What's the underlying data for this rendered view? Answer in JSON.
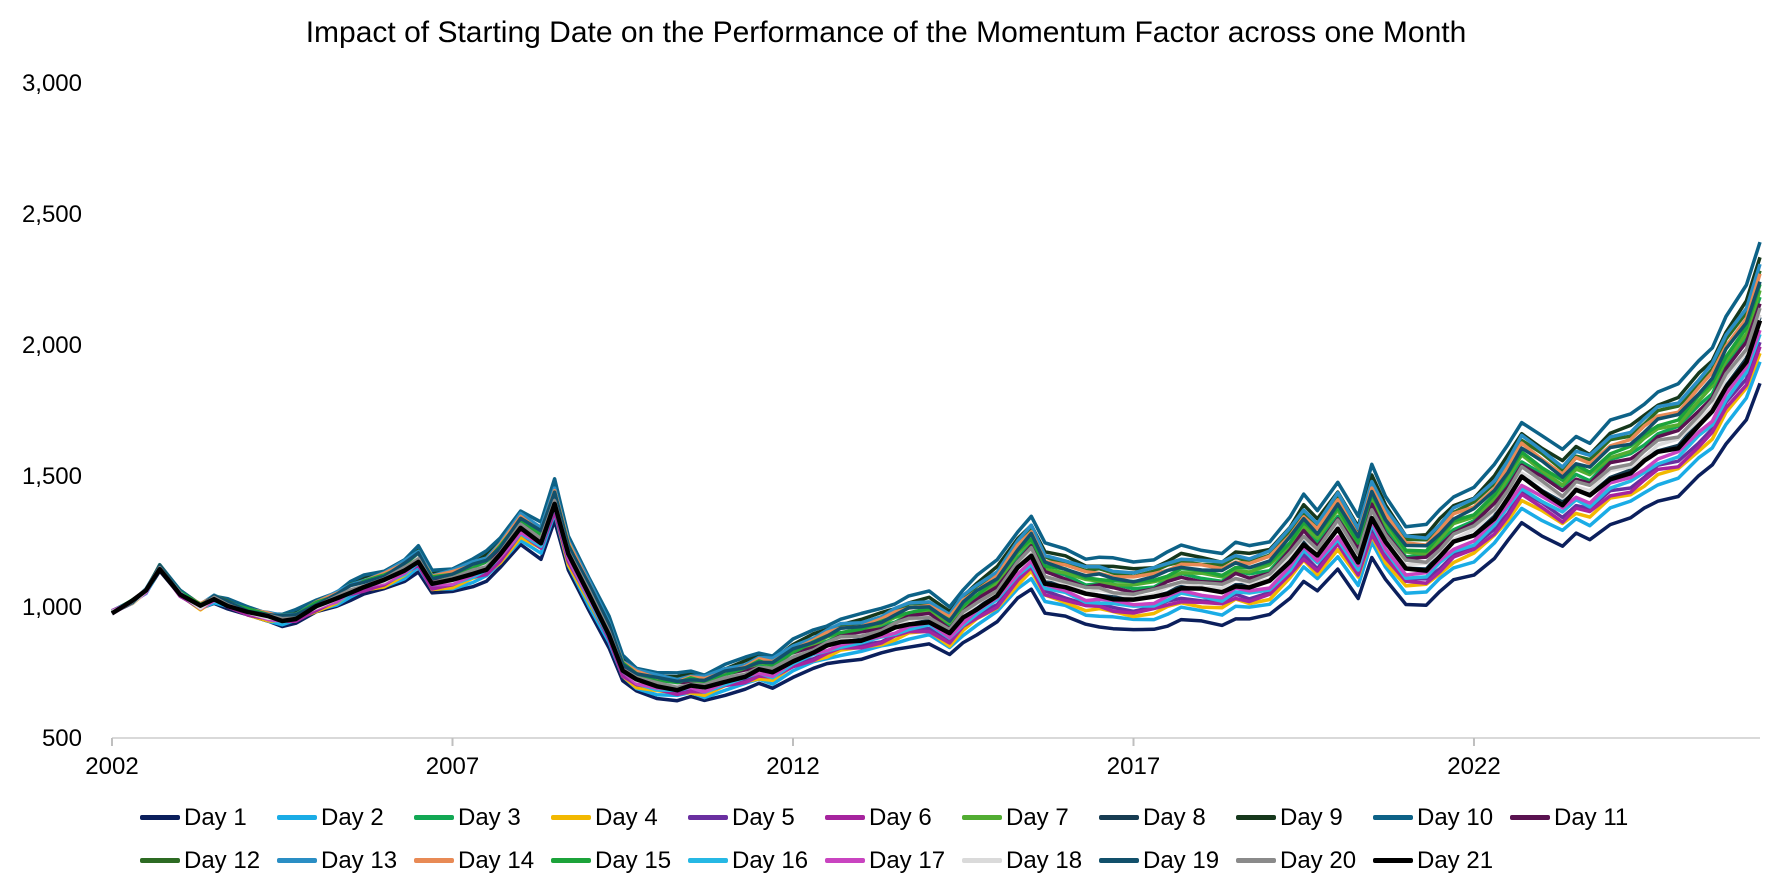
{
  "chart_data": {
    "type": "line",
    "title": "Impact of Starting Date on the Performance of the Momentum Factor across one Month",
    "xlabel": "",
    "ylabel": "",
    "xlim": [
      2002,
      2026.2
    ],
    "ylim": [
      500,
      3000
    ],
    "x_ticks": [
      "2002",
      "2007",
      "2012",
      "2017",
      "2022"
    ],
    "y_ticks": [
      "500",
      "1,000",
      "1,500",
      "2,000",
      "2,500",
      "3,000"
    ],
    "grid": false,
    "legend_position": "bottom",
    "base_path": {
      "x": [
        2002.0,
        2002.3,
        2002.5,
        2002.7,
        2003.0,
        2003.3,
        2003.5,
        2003.7,
        2004.0,
        2004.3,
        2004.5,
        2004.7,
        2005.0,
        2005.3,
        2005.5,
        2005.7,
        2006.0,
        2006.3,
        2006.5,
        2006.7,
        2007.0,
        2007.3,
        2007.5,
        2007.7,
        2008.0,
        2008.3,
        2008.5,
        2008.7,
        2009.0,
        2009.3,
        2009.5,
        2009.7,
        2010.0,
        2010.3,
        2010.5,
        2010.7,
        2011.0,
        2011.3,
        2011.5,
        2011.7,
        2012.0,
        2012.3,
        2012.5,
        2012.7,
        2013.0,
        2013.3,
        2013.5,
        2013.7,
        2014.0,
        2014.3,
        2014.5,
        2014.7,
        2015.0,
        2015.3,
        2015.5,
        2015.7,
        2016.0,
        2016.3,
        2016.5,
        2016.7,
        2017.0,
        2017.3,
        2017.5,
        2017.7,
        2018.0,
        2018.3,
        2018.5,
        2018.7,
        2019.0,
        2019.3,
        2019.5,
        2019.7,
        2020.0,
        2020.3,
        2020.5,
        2020.7,
        2021.0,
        2021.3,
        2021.5,
        2021.7,
        2022.0,
        2022.3,
        2022.5,
        2022.7,
        2023.0,
        2023.3,
        2023.5,
        2023.7,
        2024.0,
        2024.3,
        2024.5,
        2024.7,
        2025.0,
        2025.3,
        2025.5,
        2025.7,
        2026.0,
        2026.2
      ],
      "y": [
        980,
        1020,
        1060,
        1150,
        1050,
        1000,
        1030,
        1010,
        980,
        960,
        950,
        960,
        1000,
        1030,
        1060,
        1080,
        1100,
        1140,
        1180,
        1090,
        1100,
        1130,
        1150,
        1200,
        1300,
        1250,
        1400,
        1200,
        1050,
        900,
        760,
        720,
        700,
        690,
        700,
        690,
        720,
        740,
        760,
        750,
        800,
        830,
        850,
        870,
        880,
        900,
        920,
        940,
        950,
        900,
        960,
        1000,
        1050,
        1150,
        1200,
        1100,
        1080,
        1050,
        1050,
        1040,
        1030,
        1040,
        1060,
        1080,
        1070,
        1060,
        1090,
        1080,
        1100,
        1180,
        1250,
        1200,
        1300,
        1180,
        1350,
        1250,
        1150,
        1150,
        1200,
        1250,
        1280,
        1350,
        1420,
        1500,
        1450,
        1400,
        1450,
        1430,
        1500,
        1520,
        1560,
        1600,
        1620,
        1700,
        1750,
        1850,
        1950,
        2100
      ]
    },
    "series": [
      {
        "name": "Day 1",
        "color": "#0b1f5c",
        "scale": 0.88
      },
      {
        "name": "Day 2",
        "color": "#1aace6",
        "scale": 0.92
      },
      {
        "name": "Day 3",
        "color": "#12a854",
        "scale": 1.04
      },
      {
        "name": "Day 4",
        "color": "#f2b800",
        "scale": 0.94
      },
      {
        "name": "Day 5",
        "color": "#6a2fa0",
        "scale": 0.96
      },
      {
        "name": "Day 6",
        "color": "#a6249e",
        "scale": 0.95
      },
      {
        "name": "Day 7",
        "color": "#52ad32",
        "scale": 1.05
      },
      {
        "name": "Day 8",
        "color": "#173c52",
        "scale": 1.0
      },
      {
        "name": "Day 9",
        "color": "#16381c",
        "scale": 1.11
      },
      {
        "name": "Day 10",
        "color": "#0d6287",
        "scale": 1.14
      },
      {
        "name": "Day 11",
        "color": "#5a1250",
        "scale": 1.03
      },
      {
        "name": "Day 12",
        "color": "#2d6b23",
        "scale": 1.09
      },
      {
        "name": "Day 13",
        "color": "#2a8ec4",
        "scale": 1.1
      },
      {
        "name": "Day 14",
        "color": "#e88a55",
        "scale": 1.08
      },
      {
        "name": "Day 15",
        "color": "#1ca33a",
        "scale": 1.06
      },
      {
        "name": "Day 16",
        "color": "#26b8e4",
        "scale": 0.97
      },
      {
        "name": "Day 17",
        "color": "#c944c0",
        "scale": 0.98
      },
      {
        "name": "Day 18",
        "color": "#dadada",
        "scale": 1.01
      },
      {
        "name": "Day 19",
        "color": "#12506b",
        "scale": 1.07
      },
      {
        "name": "Day 20",
        "color": "#8a8a8a",
        "scale": 1.02
      },
      {
        "name": "Day 21",
        "color": "#000000",
        "scale": 0.995
      }
    ]
  }
}
